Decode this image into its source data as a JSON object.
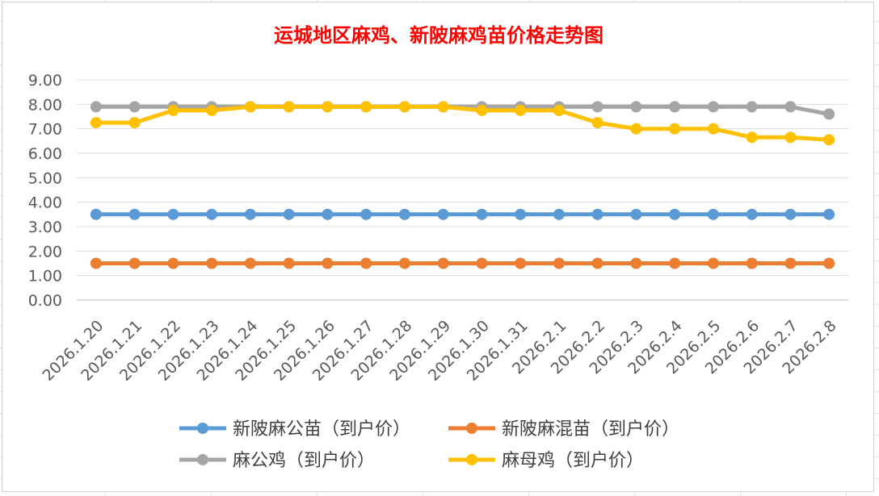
{
  "chart_data": {
    "type": "line",
    "title": "运城地区麻鸡、新陂麻鸡苗价格走势图",
    "xlabel": "",
    "ylabel": "",
    "ylim": [
      0,
      9
    ],
    "yticks": [
      "0.00",
      "1.00",
      "2.00",
      "3.00",
      "4.00",
      "5.00",
      "6.00",
      "7.00",
      "8.00",
      "9.00"
    ],
    "grid": true,
    "legend_position": "bottom",
    "categories": [
      "2026.1.20",
      "2026.1.21",
      "2026.1.22",
      "2026.1.23",
      "2026.1.24",
      "2026.1.25",
      "2026.1.26",
      "2026.1.27",
      "2026.1.28",
      "2026.1.29",
      "2026.1.30",
      "2026.1.31",
      "2026.2.1",
      "2026.2.2",
      "2026.2.3",
      "2026.2.4",
      "2026.2.5",
      "2026.2.6",
      "2026.2.7",
      "2026.2.8"
    ],
    "series": [
      {
        "name": "新陂麻公苗（到户价）",
        "color": "#5b9bd5",
        "values": [
          3.5,
          3.5,
          3.5,
          3.5,
          3.5,
          3.5,
          3.5,
          3.5,
          3.5,
          3.5,
          3.5,
          3.5,
          3.5,
          3.5,
          3.5,
          3.5,
          3.5,
          3.5,
          3.5,
          3.5
        ]
      },
      {
        "name": "新陂麻混苗（到户价）",
        "color": "#ed7d31",
        "values": [
          1.5,
          1.5,
          1.5,
          1.5,
          1.5,
          1.5,
          1.5,
          1.5,
          1.5,
          1.5,
          1.5,
          1.5,
          1.5,
          1.5,
          1.5,
          1.5,
          1.5,
          1.5,
          1.5,
          1.5
        ]
      },
      {
        "name": "麻公鸡（到户价）",
        "color": "#a5a5a5",
        "values": [
          7.9,
          7.9,
          7.9,
          7.9,
          7.9,
          7.9,
          7.9,
          7.9,
          7.9,
          7.9,
          7.9,
          7.9,
          7.9,
          7.9,
          7.9,
          7.9,
          7.9,
          7.9,
          7.9,
          7.6
        ]
      },
      {
        "name": "麻母鸡（到户价）",
        "color": "#ffc000",
        "values": [
          7.25,
          7.25,
          7.75,
          7.75,
          7.9,
          7.9,
          7.9,
          7.9,
          7.9,
          7.9,
          7.75,
          7.75,
          7.75,
          7.25,
          7.0,
          7.0,
          7.0,
          6.65,
          6.65,
          6.55
        ]
      }
    ]
  }
}
